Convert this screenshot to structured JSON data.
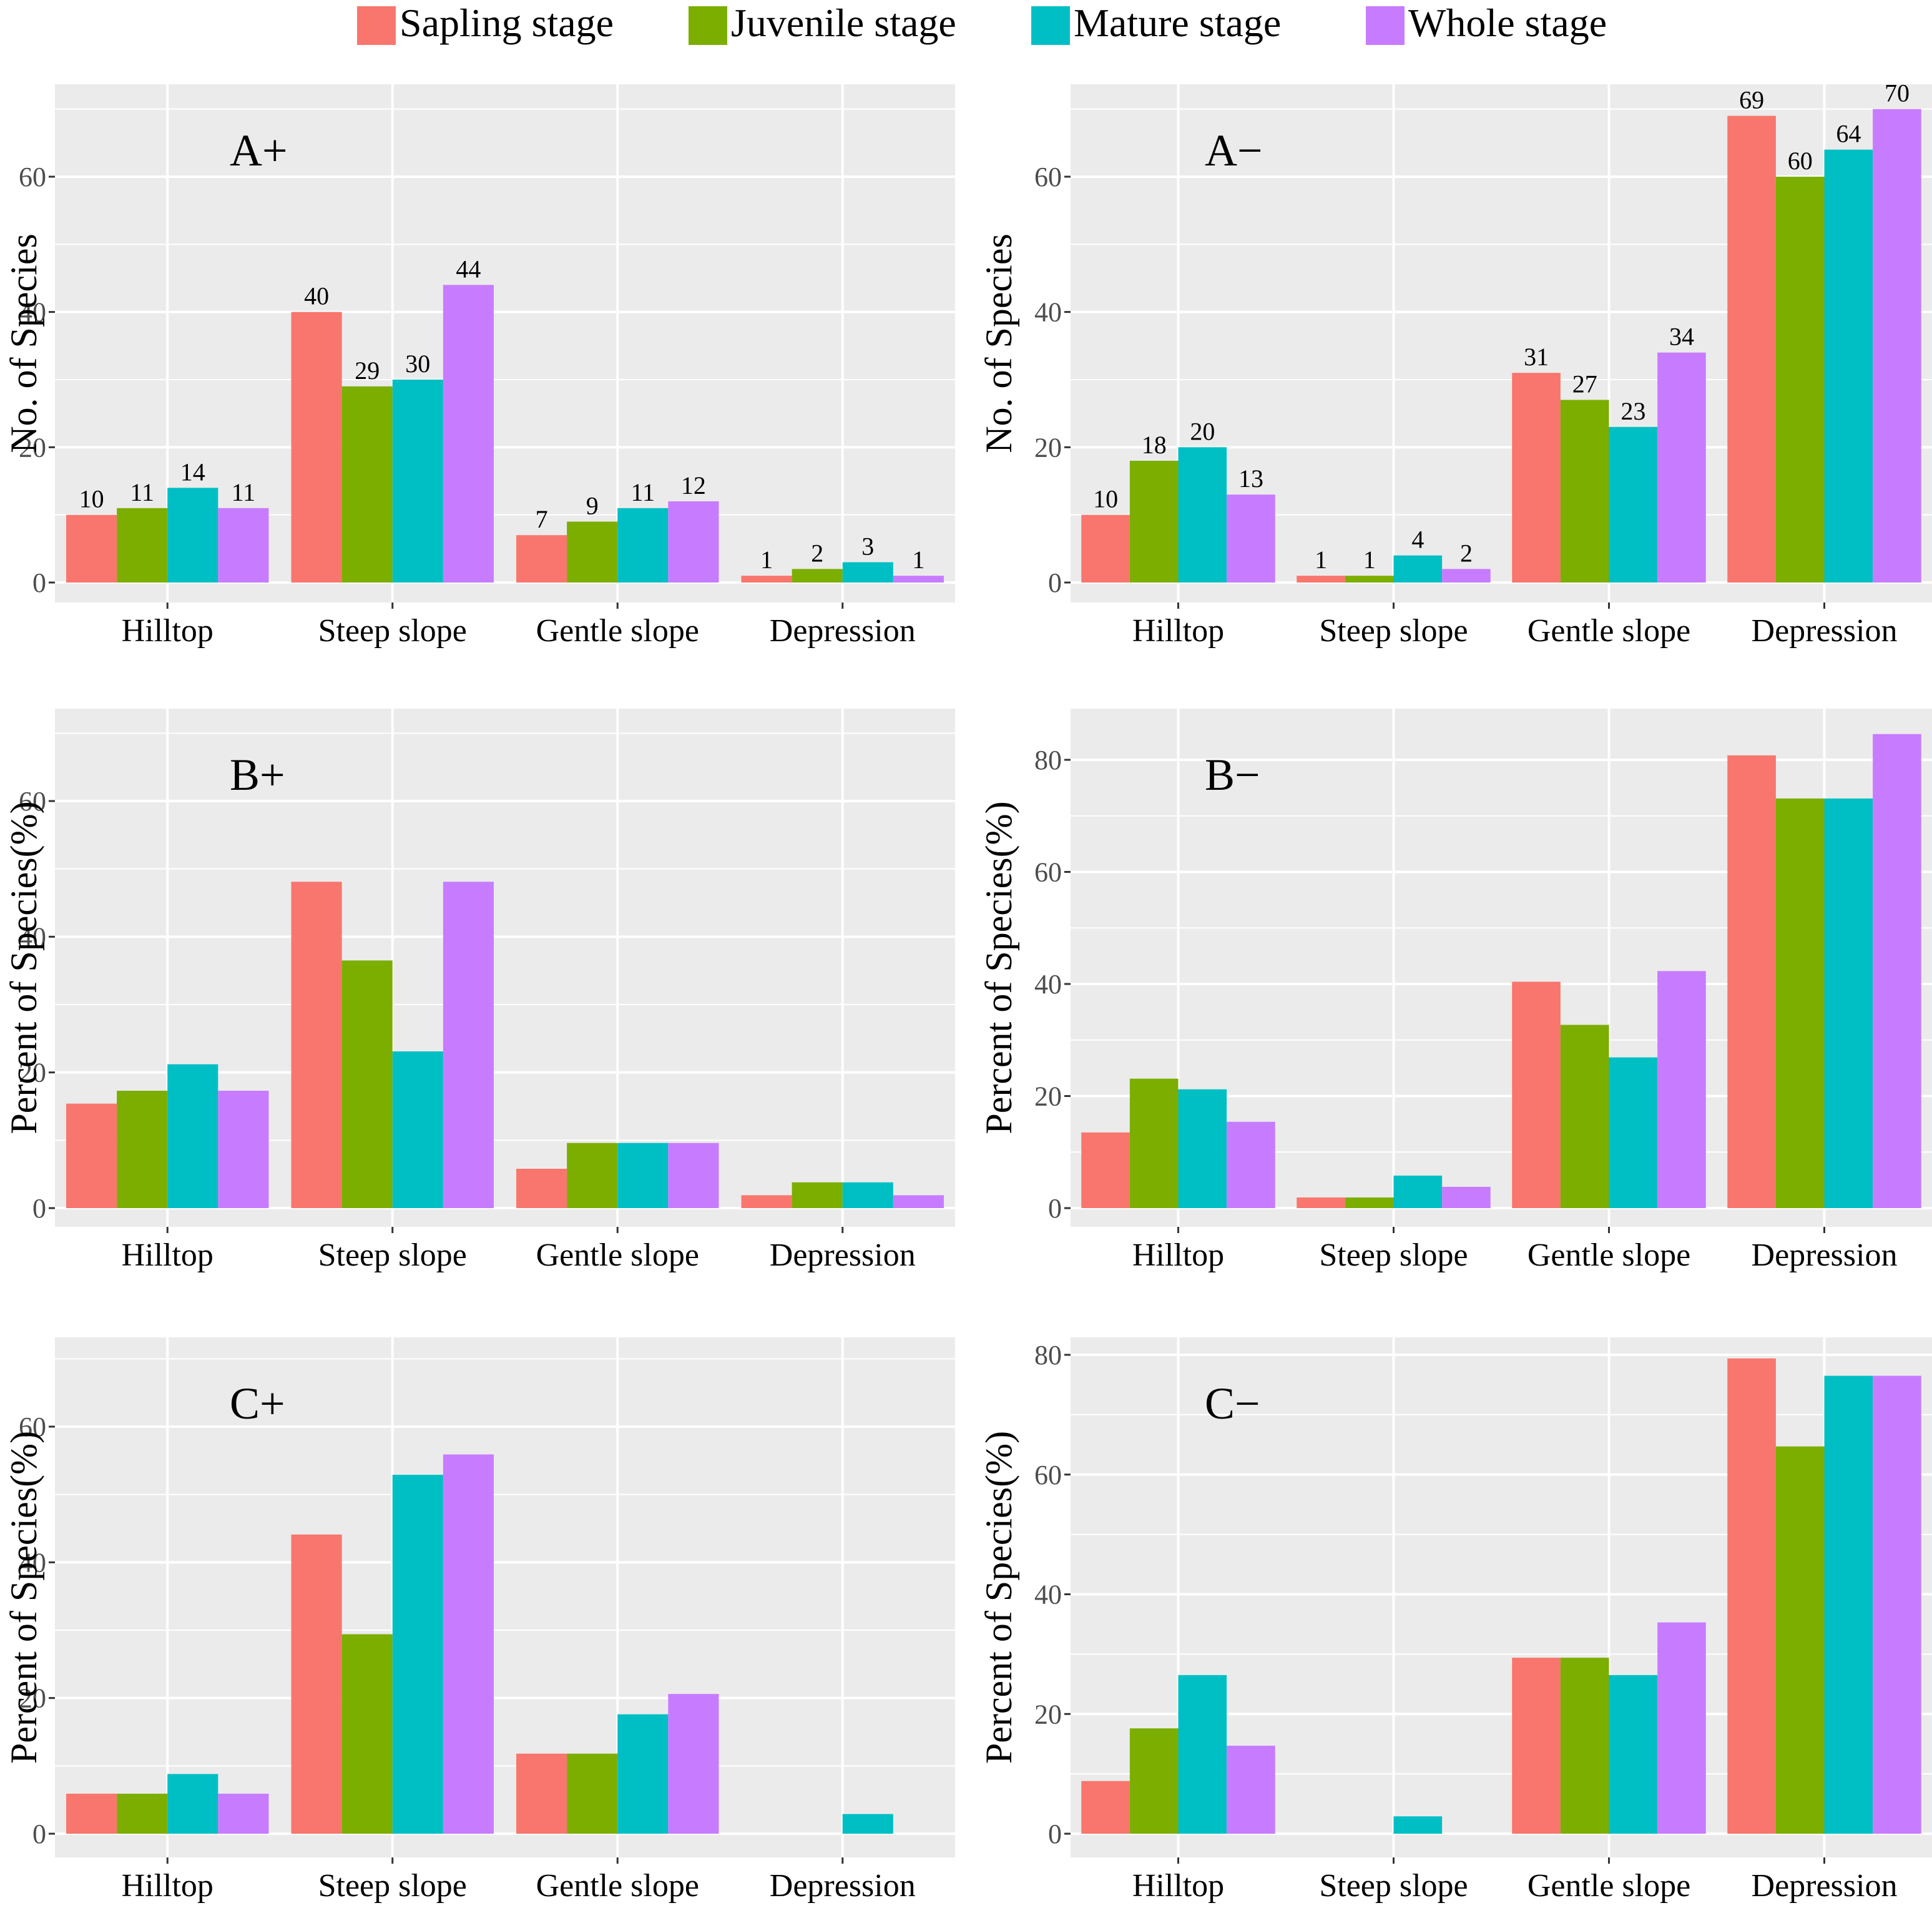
{
  "legend": [
    {
      "name": "Sapling stage",
      "color": "#F8766D"
    },
    {
      "name": "Juvenile stage",
      "color": "#7CAE00"
    },
    {
      "name": "Mature stage",
      "color": "#00BFC4"
    },
    {
      "name": "Whole stage",
      "color": "#C77CFF"
    }
  ],
  "chart_data": [
    {
      "type": "bar",
      "panel": "A+",
      "ylabel": "No. of Species",
      "ylim": [
        0,
        72
      ],
      "yticks": [
        0,
        20,
        40,
        60
      ],
      "show_value_labels": true,
      "categories": [
        "Hilltop",
        "Steep slope",
        "Gentle slope",
        "Depression"
      ],
      "series": [
        {
          "name": "Sapling stage",
          "values": [
            10,
            40,
            7,
            1
          ]
        },
        {
          "name": "Juvenile stage",
          "values": [
            11,
            29,
            9,
            2
          ]
        },
        {
          "name": "Mature stage",
          "values": [
            14,
            30,
            11,
            3
          ]
        },
        {
          "name": "Whole stage",
          "values": [
            11,
            44,
            12,
            1
          ]
        }
      ]
    },
    {
      "type": "bar",
      "panel": "A−",
      "ylabel": "No. of Species",
      "ylim": [
        0,
        72
      ],
      "yticks": [
        0,
        20,
        40,
        60
      ],
      "show_value_labels": true,
      "categories": [
        "Hilltop",
        "Steep slope",
        "Gentle slope",
        "Depression"
      ],
      "series": [
        {
          "name": "Sapling stage",
          "values": [
            10,
            1,
            31,
            69
          ]
        },
        {
          "name": "Juvenile stage",
          "values": [
            18,
            1,
            27,
            60
          ]
        },
        {
          "name": "Mature stage",
          "values": [
            20,
            4,
            23,
            64
          ]
        },
        {
          "name": "Whole stage",
          "values": [
            13,
            2,
            34,
            70
          ]
        }
      ]
    },
    {
      "type": "bar",
      "panel": "B+",
      "ylabel": "Percent of Species(%)",
      "ylim": [
        0,
        70.5
      ],
      "yticks": [
        0,
        20,
        40,
        60
      ],
      "show_value_labels": false,
      "categories": [
        "Hilltop",
        "Steep slope",
        "Gentle slope",
        "Depression"
      ],
      "series": [
        {
          "name": "Sapling stage",
          "values": [
            15.4,
            48.1,
            5.8,
            1.9
          ]
        },
        {
          "name": "Juvenile stage",
          "values": [
            17.3,
            36.5,
            9.6,
            3.8
          ]
        },
        {
          "name": "Mature stage",
          "values": [
            21.2,
            23.1,
            9.6,
            3.8
          ]
        },
        {
          "name": "Whole stage",
          "values": [
            17.3,
            48.1,
            9.6,
            1.9
          ]
        }
      ]
    },
    {
      "type": "bar",
      "panel": "B−",
      "ylabel": "Percent of Species(%)",
      "ylim": [
        0,
        88.5
      ],
      "yticks": [
        0,
        20,
        40,
        60,
        80
      ],
      "show_value_labels": false,
      "categories": [
        "Hilltop",
        "Steep slope",
        "Gentle slope",
        "Depression"
      ],
      "series": [
        {
          "name": "Sapling stage",
          "values": [
            13.5,
            1.9,
            40.4,
            80.8
          ]
        },
        {
          "name": "Juvenile stage",
          "values": [
            23.1,
            1.9,
            32.7,
            73.1
          ]
        },
        {
          "name": "Mature stage",
          "values": [
            21.2,
            5.8,
            26.9,
            73.1
          ]
        },
        {
          "name": "Whole stage",
          "values": [
            15.4,
            3.8,
            42.3,
            84.6
          ]
        }
      ]
    },
    {
      "type": "bar",
      "panel": "C+",
      "ylabel": "Percent of Species(%)",
      "ylim": [
        0,
        70.5
      ],
      "yticks": [
        0,
        20,
        40,
        60
      ],
      "show_value_labels": false,
      "categories": [
        "Hilltop",
        "Steep slope",
        "Gentle slope",
        "Depression"
      ],
      "series": [
        {
          "name": "Sapling stage",
          "values": [
            5.9,
            44.1,
            11.8,
            0
          ]
        },
        {
          "name": "Juvenile stage",
          "values": [
            5.9,
            29.4,
            11.8,
            0
          ]
        },
        {
          "name": "Mature stage",
          "values": [
            8.8,
            52.9,
            17.6,
            2.9
          ]
        },
        {
          "name": "Whole stage",
          "values": [
            5.9,
            55.9,
            20.6,
            0
          ]
        }
      ]
    },
    {
      "type": "bar",
      "panel": "C−",
      "ylabel": "Percent of Species(%)",
      "ylim": [
        0,
        82.5
      ],
      "yticks": [
        0,
        20,
        40,
        60,
        80
      ],
      "show_value_labels": false,
      "categories": [
        "Hilltop",
        "Steep slope",
        "Gentle slope",
        "Depression"
      ],
      "series": [
        {
          "name": "Sapling stage",
          "values": [
            8.8,
            0,
            29.4,
            79.4
          ]
        },
        {
          "name": "Juvenile stage",
          "values": [
            17.6,
            0,
            29.4,
            64.7
          ]
        },
        {
          "name": "Mature stage",
          "values": [
            26.5,
            2.9,
            26.5,
            76.5
          ]
        },
        {
          "name": "Whole stage",
          "values": [
            14.7,
            0,
            35.3,
            76.5
          ]
        }
      ]
    }
  ]
}
